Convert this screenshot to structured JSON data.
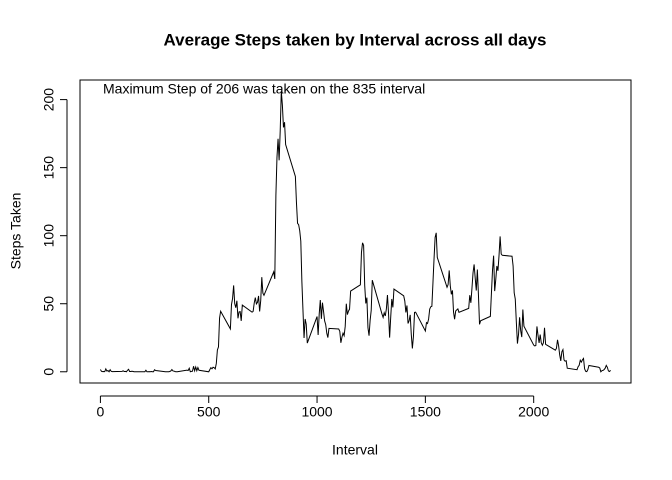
{
  "chart_data": {
    "type": "line",
    "title": "Average Steps taken by Interval across all days",
    "xlabel": "Interval",
    "ylabel": "Steps Taken",
    "annotation": "Maximum Step of 206 was taken on the 835 interval",
    "color": "#000000",
    "xlim": [
      -94.2,
      2449.2
    ],
    "ylim": [
      -8.25,
      214.4
    ],
    "xticks": [
      0,
      500,
      1000,
      1500,
      2000
    ],
    "yticks": [
      0,
      50,
      100,
      150,
      200
    ],
    "x": [
      0,
      5,
      10,
      15,
      20,
      25,
      30,
      35,
      40,
      45,
      50,
      55,
      100,
      105,
      110,
      115,
      120,
      125,
      130,
      135,
      140,
      145,
      150,
      155,
      200,
      205,
      210,
      215,
      220,
      225,
      230,
      235,
      240,
      245,
      250,
      255,
      300,
      305,
      310,
      315,
      320,
      325,
      330,
      335,
      340,
      345,
      350,
      355,
      400,
      405,
      410,
      415,
      420,
      425,
      430,
      435,
      440,
      445,
      450,
      455,
      500,
      505,
      510,
      515,
      520,
      525,
      530,
      535,
      540,
      545,
      550,
      555,
      600,
      605,
      610,
      615,
      620,
      625,
      630,
      635,
      640,
      645,
      650,
      655,
      700,
      705,
      710,
      715,
      720,
      725,
      730,
      735,
      740,
      745,
      750,
      755,
      800,
      805,
      810,
      815,
      820,
      825,
      830,
      835,
      840,
      845,
      850,
      855,
      900,
      905,
      910,
      915,
      920,
      925,
      930,
      935,
      940,
      945,
      950,
      955,
      1000,
      1005,
      1010,
      1015,
      1020,
      1025,
      1030,
      1035,
      1040,
      1045,
      1050,
      1055,
      1100,
      1105,
      1110,
      1115,
      1120,
      1125,
      1130,
      1135,
      1140,
      1145,
      1150,
      1155,
      1200,
      1205,
      1210,
      1215,
      1220,
      1225,
      1230,
      1235,
      1240,
      1245,
      1250,
      1255,
      1300,
      1305,
      1310,
      1315,
      1320,
      1325,
      1330,
      1335,
      1340,
      1345,
      1350,
      1355,
      1400,
      1405,
      1410,
      1415,
      1420,
      1425,
      1430,
      1435,
      1440,
      1445,
      1450,
      1455,
      1500,
      1505,
      1510,
      1515,
      1520,
      1525,
      1530,
      1535,
      1540,
      1545,
      1550,
      1555,
      1600,
      1605,
      1610,
      1615,
      1620,
      1625,
      1630,
      1635,
      1640,
      1645,
      1650,
      1655,
      1700,
      1705,
      1710,
      1715,
      1720,
      1725,
      1730,
      1735,
      1740,
      1745,
      1750,
      1755,
      1800,
      1805,
      1810,
      1815,
      1820,
      1825,
      1830,
      1835,
      1840,
      1845,
      1850,
      1855,
      1900,
      1905,
      1910,
      1915,
      1920,
      1925,
      1930,
      1935,
      1940,
      1945,
      1950,
      1955,
      2000,
      2005,
      2010,
      2015,
      2020,
      2025,
      2030,
      2035,
      2040,
      2045,
      2050,
      2055,
      2100,
      2105,
      2110,
      2115,
      2120,
      2125,
      2130,
      2135,
      2140,
      2145,
      2150,
      2155,
      2200,
      2205,
      2210,
      2215,
      2220,
      2225,
      2230,
      2235,
      2240,
      2245,
      2250,
      2255,
      2300,
      2305,
      2310,
      2315,
      2320,
      2325,
      2330,
      2335,
      2340,
      2345,
      2350,
      2355
    ],
    "values": [
      1.7,
      0.3,
      0.1,
      0.2,
      0.1,
      2.1,
      0.5,
      0.9,
      0,
      1.5,
      0.3,
      0.1,
      0.3,
      0.7,
      0.2,
      0.3,
      0,
      1.1,
      1.8,
      0.2,
      0.2,
      0.4,
      0.3,
      0,
      0,
      0,
      1.1,
      0,
      0,
      0.1,
      0,
      0.2,
      0,
      0,
      1.5,
      0.9,
      0,
      0,
      0,
      0,
      0.2,
      0.6,
      1.6,
      0.6,
      0.5,
      0.1,
      0,
      0,
      1.2,
      0.9,
      2.6,
      0,
      0.3,
      0.4,
      4.1,
      0.7,
      3.5,
      0.8,
      3.1,
      1.1,
      0,
      1.6,
      3,
      2.2,
      3.3,
      3,
      2.1,
      6.1,
      16,
      18.3,
      39.5,
      44.5,
      31.5,
      49.3,
      53.8,
      63.5,
      50,
      47.1,
      52.2,
      39.3,
      44,
      44.2,
      37.4,
      49,
      43.8,
      44.4,
      50.5,
      54.5,
      49.9,
      51,
      55.7,
      44.3,
      52.3,
      69.5,
      57.8,
      56.2,
      73.4,
      68.2,
      129.4,
      157.5,
      171.2,
      155.4,
      177.3,
      206.2,
      195.9,
      179.6,
      183.4,
      167,
      143.5,
      124,
      109.1,
      108.1,
      103.7,
      96,
      66.2,
      45.2,
      24.8,
      38.8,
      35,
      21.1,
      40.6,
      27,
      42.4,
      52.7,
      38.9,
      50.8,
      44.3,
      37.4,
      34.7,
      28.3,
      25.1,
      31.9,
      31.4,
      29.7,
      21.3,
      25.5,
      28.4,
      26.5,
      33.4,
      50,
      42,
      44.6,
      46,
      59.3,
      63.9,
      87.7,
      94.8,
      92.8,
      63.4,
      50.2,
      54.5,
      32.4,
      26.5,
      37.7,
      45.1,
      67.3,
      42.3,
      39.9,
      43.3,
      41,
      46.2,
      56.4,
      42.8,
      25.1,
      40,
      53.5,
      47.3,
      60.8,
      55.8,
      52,
      43.6,
      48.7,
      35.5,
      37.5,
      41.8,
      27.5,
      17.1,
      26.1,
      43.6,
      43.8,
      30,
      36.1,
      35.5,
      38.8,
      46,
      47.8,
      48.1,
      65.3,
      82.9,
      98.7,
      102.1,
      84,
      62.1,
      64.1,
      74.5,
      63.2,
      56.9,
      59.8,
      43.9,
      38.6,
      44.7,
      45.5,
      46.2,
      43.7,
      46.6,
      56.3,
      50.7,
      61.2,
      72.7,
      78.9,
      68.9,
      59.7,
      75.1,
      56.5,
      34.8,
      37.5,
      40.7,
      58,
      74.7,
      85.3,
      59.3,
      67.8,
      77.7,
      74.2,
      85.3,
      99.5,
      86.6,
      85.6,
      84.9,
      77.8,
      58,
      53.4,
      36.3,
      20.7,
      27.4,
      40,
      30.2,
      25.5,
      45.7,
      33.5,
      19.6,
      19,
      19.3,
      33.3,
      26.8,
      21.2,
      27.3,
      21.3,
      19.5,
      21.3,
      32.3,
      20.2,
      15.9,
      17.2,
      23.5,
      19.2,
      12.5,
      8,
      14.7,
      16.3,
      8.7,
      7.8,
      8.1,
      2.6,
      1.5,
      3.7,
      4.8,
      8.5,
      7.1,
      8.7,
      9.8,
      2.2,
      0.3,
      0.1,
      1.6,
      4.6,
      3.3,
      2.8,
      0,
      0.8,
      1,
      1.6,
      2.6,
      4.7,
      3.3,
      0.6,
      0.2,
      1.1
    ]
  }
}
